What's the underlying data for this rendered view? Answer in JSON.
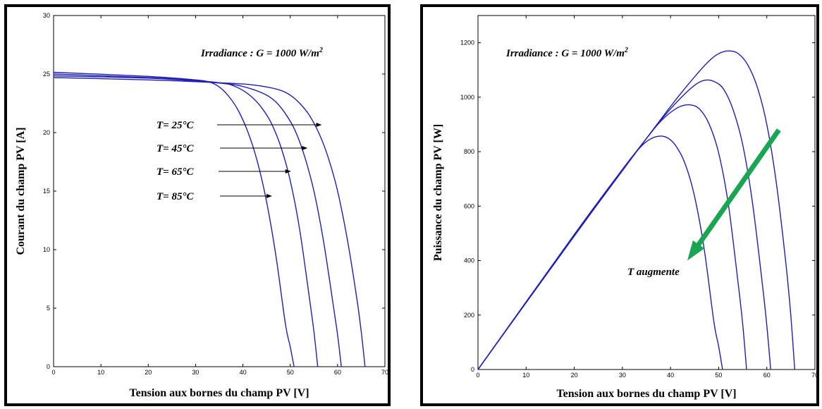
{
  "chart_data": [
    {
      "type": "line",
      "title": "",
      "xlabel": "Tension aux bornes du champ PV [V]",
      "ylabel": "Courant du champ PV [A]",
      "xlim": [
        0,
        70
      ],
      "ylim": [
        0,
        30
      ],
      "xticks": [
        0,
        10,
        20,
        30,
        40,
        50,
        60,
        70
      ],
      "yticks": [
        0,
        5,
        10,
        15,
        20,
        25,
        30
      ],
      "grid": false,
      "line_color": "#1f1fb4",
      "annotation_top": "Irradiance : G = 1000 W/m",
      "annotation_sup": "2",
      "series": [
        {
          "name": "T= 25°C",
          "x": [
            0,
            20,
            30,
            40,
            45,
            48,
            50,
            52,
            54,
            56,
            58,
            60,
            62,
            64,
            65,
            65.8
          ],
          "y": [
            24.7,
            24.5,
            24.35,
            24.15,
            23.9,
            23.6,
            23.2,
            22.5,
            21.5,
            20.0,
            17.9,
            15.0,
            11.0,
            6.0,
            3.0,
            0
          ]
        },
        {
          "name": "T= 45°C",
          "x": [
            0,
            20,
            30,
            38,
            42,
            45,
            47,
            49,
            51,
            53,
            55,
            57,
            59,
            60,
            60.8
          ],
          "y": [
            24.85,
            24.65,
            24.4,
            24.1,
            23.7,
            23.2,
            22.6,
            21.6,
            20.2,
            18.0,
            15.0,
            10.8,
            5.5,
            2.7,
            0
          ]
        },
        {
          "name": "T= 65°C",
          "x": [
            0,
            20,
            30,
            36,
            38,
            40,
            42,
            44,
            46,
            48,
            50,
            52,
            54,
            55,
            55.8
          ],
          "y": [
            25.0,
            24.7,
            24.45,
            24.2,
            24.0,
            23.6,
            23.0,
            22.1,
            20.8,
            18.8,
            15.9,
            11.7,
            6.0,
            3.0,
            0
          ]
        },
        {
          "name": "T= 85°C",
          "x": [
            0,
            20,
            30,
            33,
            35,
            37,
            39,
            41,
            43,
            45,
            47,
            49,
            50,
            50.8
          ],
          "y": [
            25.15,
            24.8,
            24.5,
            24.3,
            23.9,
            23.1,
            21.9,
            20.1,
            17.6,
            14.1,
            9.4,
            3.6,
            1.7,
            0
          ]
        }
      ],
      "labels": [
        {
          "text": "T= 25°C",
          "arrow_to": [
            56.5,
            20.7
          ]
        },
        {
          "text": "T= 45°C",
          "arrow_to": [
            53.5,
            18.7
          ]
        },
        {
          "text": "T= 65°C",
          "arrow_to": [
            50.0,
            16.8
          ]
        },
        {
          "text": "T= 85°C",
          "arrow_to": [
            46.0,
            14.8
          ]
        }
      ]
    },
    {
      "type": "line",
      "title": "",
      "xlabel": "Tension aux bornes du champ PV [V]",
      "ylabel": "Puissance du champ PV [W]",
      "xlim": [
        0,
        70
      ],
      "ylim": [
        0,
        1300
      ],
      "xticks": [
        0,
        10,
        20,
        30,
        40,
        50,
        60,
        70
      ],
      "yticks": [
        0,
        200,
        400,
        600,
        800,
        1000,
        1200
      ],
      "grid": false,
      "line_color": "#1f1fb4",
      "arrow_color": "#1aa553",
      "annotation_top": "Irradiance : G = 1000 W/m",
      "annotation_sup": "2",
      "annotation_arrow": "T augmente",
      "arrow_from": [
        62.5,
        880
      ],
      "arrow_to": [
        43.5,
        400
      ],
      "series": [
        {
          "name": "T= 25°C",
          "x": [
            0,
            20,
            30,
            40,
            45,
            48,
            50,
            52,
            54,
            56,
            58,
            60,
            62,
            64,
            65,
            65.8
          ],
          "y": [
            0,
            490,
            730,
            966,
            1075,
            1133,
            1160,
            1170,
            1161,
            1120,
            1038,
            900,
            682,
            384,
            195,
            0
          ]
        },
        {
          "name": "T= 45°C",
          "x": [
            0,
            20,
            30,
            38,
            42,
            45,
            47,
            49,
            51,
            53,
            55,
            57,
            59,
            60,
            60.8
          ],
          "y": [
            0,
            493,
            732,
            916,
            995,
            1044,
            1062,
            1058,
            1030,
            954,
            825,
            616,
            325,
            162,
            0
          ]
        },
        {
          "name": "T= 65°C",
          "x": [
            0,
            20,
            30,
            36,
            38,
            40,
            42,
            44,
            46,
            48,
            50,
            52,
            54,
            55,
            55.8
          ],
          "y": [
            0,
            494,
            734,
            871,
            912,
            944,
            966,
            972,
            957,
            902,
            795,
            608,
            324,
            165,
            0
          ]
        },
        {
          "name": "T= 85°C",
          "x": [
            0,
            20,
            30,
            33,
            35,
            37,
            39,
            41,
            43,
            45,
            47,
            49,
            50,
            50.8
          ],
          "y": [
            0,
            496,
            735,
            802,
            837,
            855,
            854,
            824,
            757,
            635,
            442,
            176,
            85,
            0
          ]
        }
      ]
    }
  ]
}
